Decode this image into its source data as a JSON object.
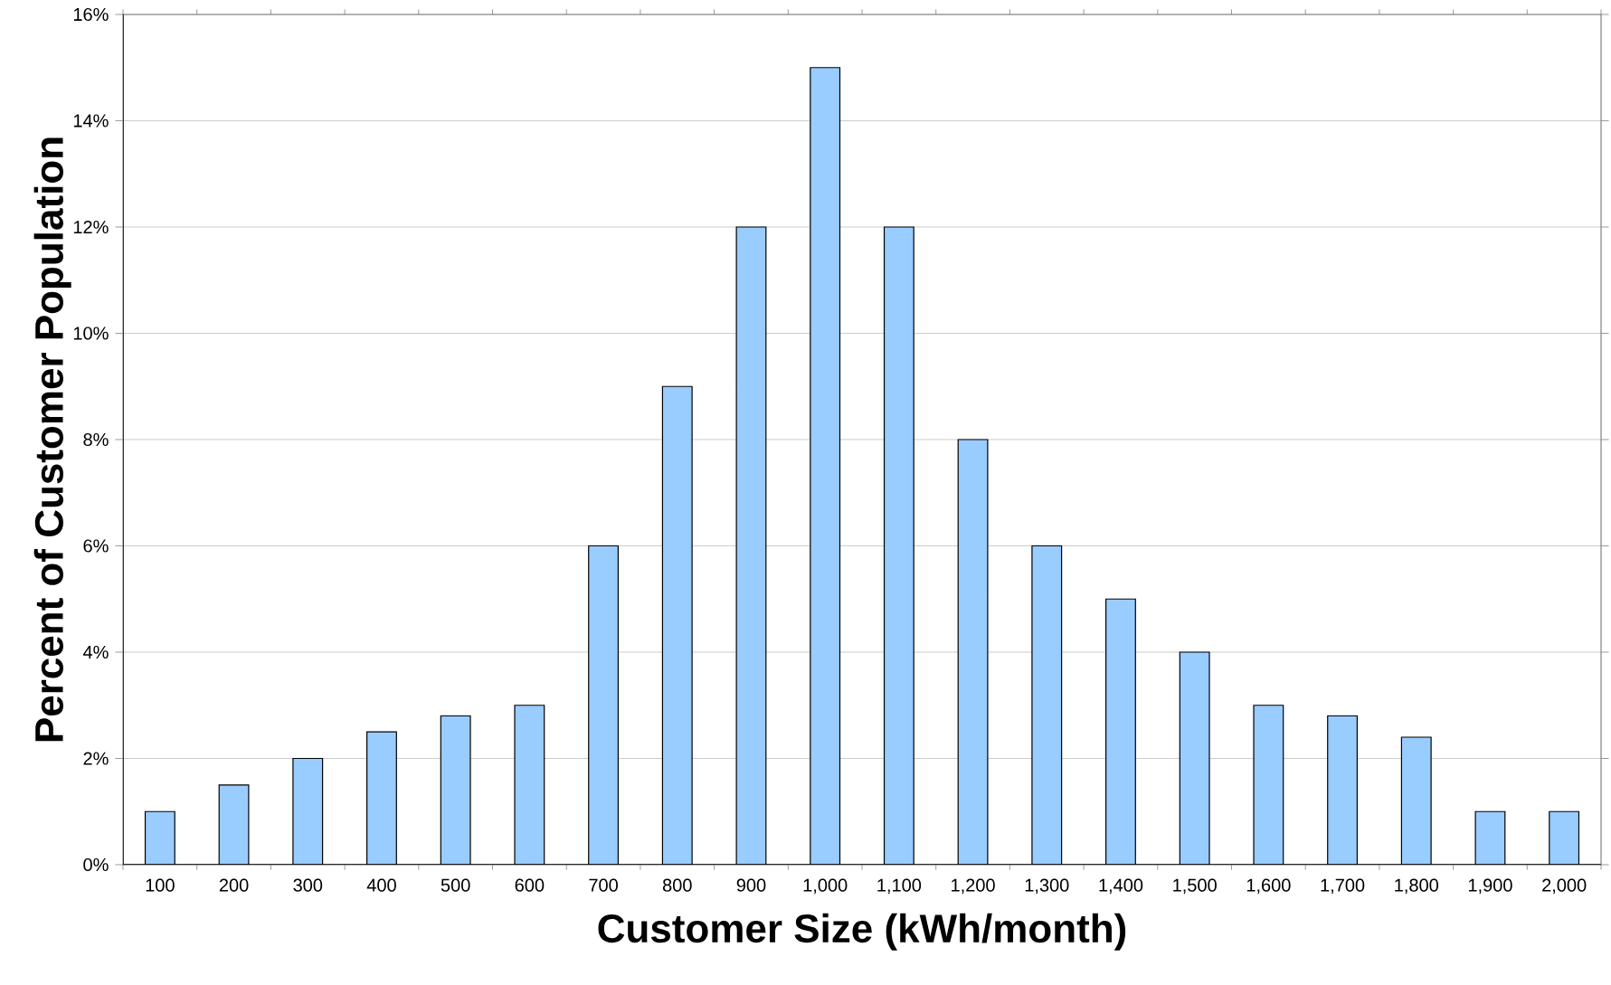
{
  "chart_data": {
    "type": "bar",
    "xlabel": "Customer Size (kWh/month)",
    "ylabel": "Percent of Customer Population",
    "categories": [
      "100",
      "200",
      "300",
      "400",
      "500",
      "600",
      "700",
      "800",
      "900",
      "1,000",
      "1,100",
      "1,200",
      "1,300",
      "1,400",
      "1,500",
      "1,600",
      "1,700",
      "1,800",
      "1,900",
      "2,000"
    ],
    "values": [
      1,
      1.5,
      2,
      2.5,
      2.8,
      3,
      6,
      9,
      12,
      15,
      12,
      8,
      6,
      5,
      4,
      3,
      2.8,
      2.4,
      1,
      1
    ],
    "color": "#99ccff",
    "ylim": [
      0,
      16
    ],
    "yticks": [
      {
        "value": 0,
        "label": "0%"
      },
      {
        "value": 2,
        "label": "2%"
      },
      {
        "value": 4,
        "label": "4%"
      },
      {
        "value": 6,
        "label": "6%"
      },
      {
        "value": 8,
        "label": "8%"
      },
      {
        "value": 10,
        "label": "10%"
      },
      {
        "value": 12,
        "label": "12%"
      },
      {
        "value": 14,
        "label": "14%"
      },
      {
        "value": 16,
        "label": "16%"
      }
    ],
    "grid": "y"
  }
}
